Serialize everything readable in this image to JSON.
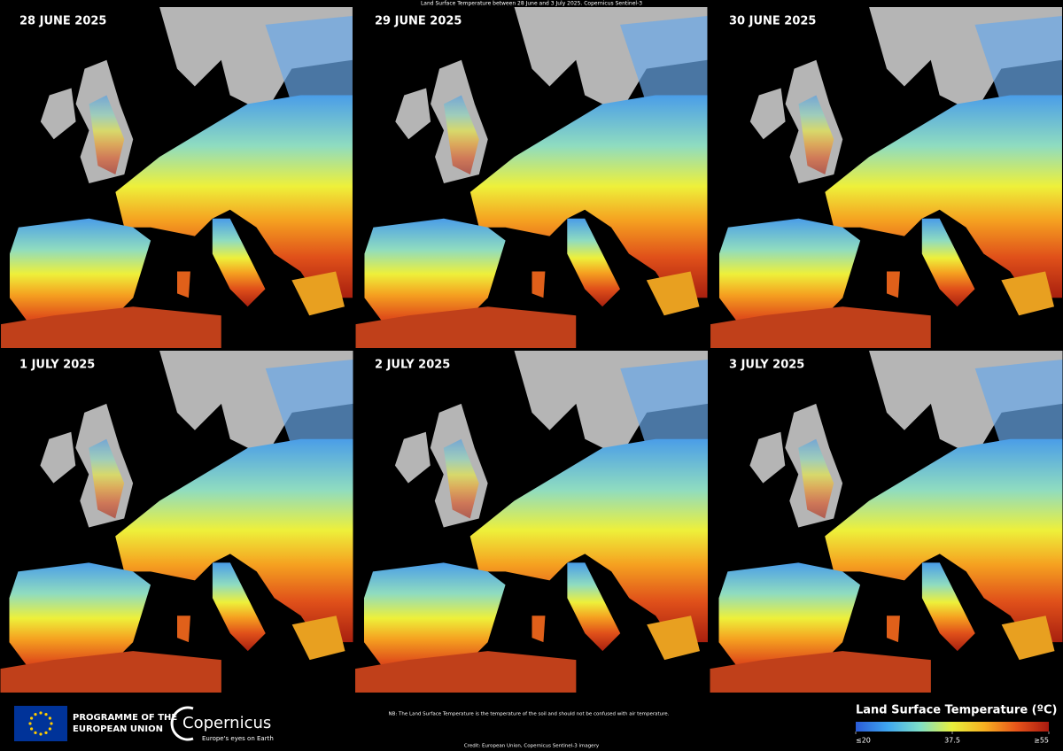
{
  "title": "Land Surface Temperature between 28 June and 3 July 2025. Copernicus Sentinel-3",
  "panels": [
    {
      "label": "28 JUNE 2025"
    },
    {
      "label": "29 JUNE 2025"
    },
    {
      "label": "30 JUNE 2025"
    },
    {
      "label": "1 JULY 2025"
    },
    {
      "label": "2 JULY 2025"
    },
    {
      "label": "3 JULY 2025"
    }
  ],
  "footer": {
    "programme": [
      "PROGRAMME OF THE",
      "EUROPEAN UNION"
    ],
    "logo": "Copernicus",
    "tagline": "Europe's eyes on Earth",
    "note": "NB: The Land Surface Temperature is the temperature of the soil and should not be confused with air temperature.",
    "credit": "Credit: European Union, Copernicus Sentinel-3 imagery"
  },
  "legend": {
    "title": "Land Surface Temperature (ºC)",
    "range": [
      20,
      55
    ],
    "ticks": [
      {
        "value": 20,
        "label": "≤20"
      },
      37.5,
      {
        "value": 55,
        "label": "≥55"
      }
    ],
    "colors": [
      "#2a5bd7",
      "#3fa7f0",
      "#7fe0c8",
      "#e8f03c",
      "#f7b021",
      "#e8541a",
      "#a81a10"
    ]
  }
}
